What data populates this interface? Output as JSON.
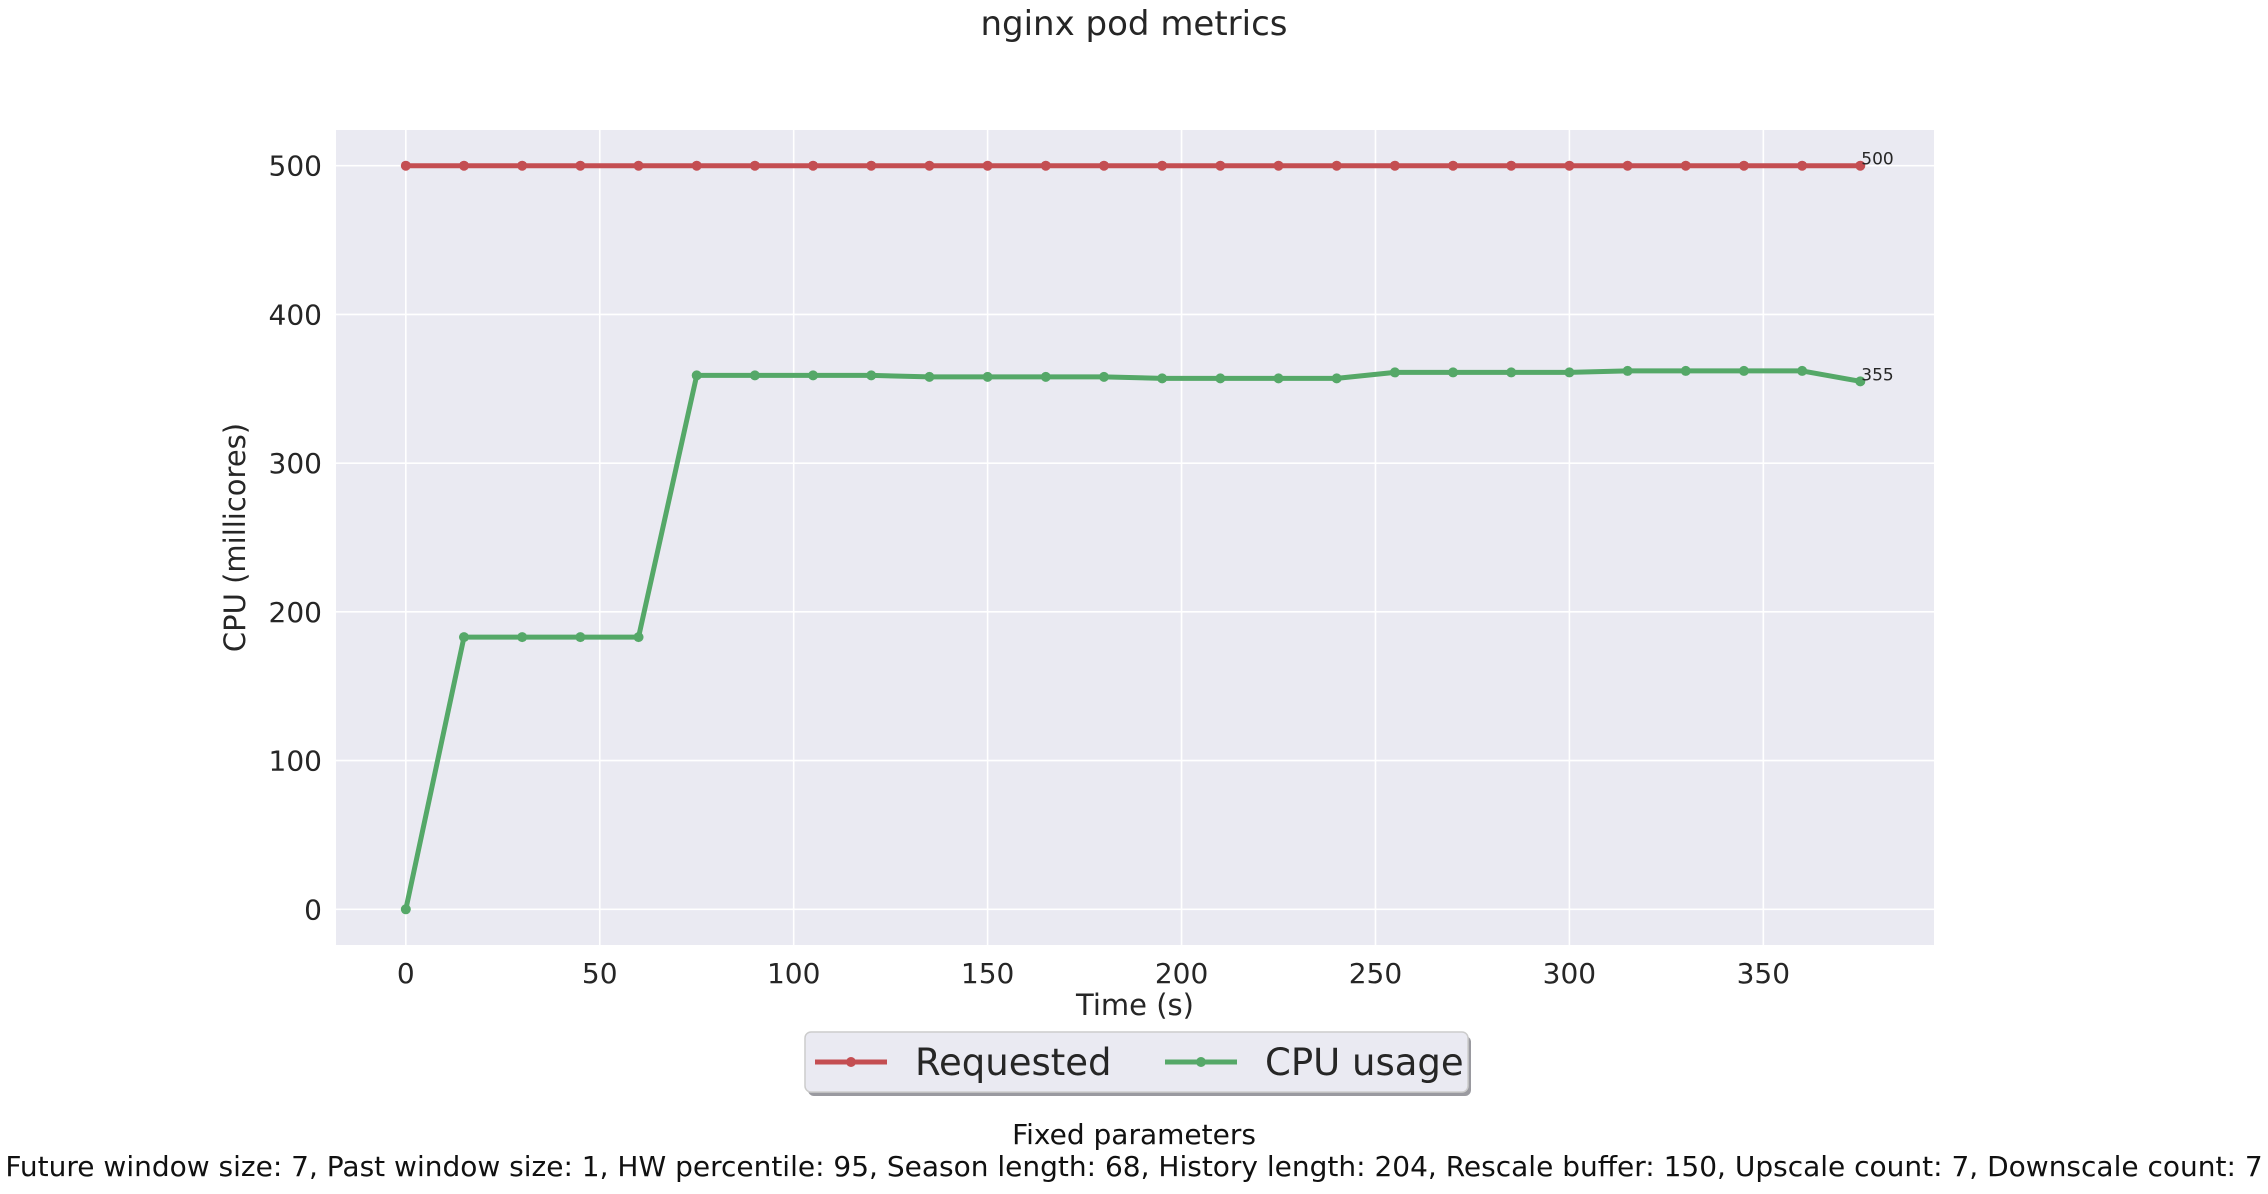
{
  "title": "nginx pod metrics",
  "footer": {
    "heading": "Fixed parameters",
    "params": "Future window size: 7, Past window size: 1, HW percentile: 95, Season length: 68, History length: 204, Rescale buffer: 150, Upscale count: 7, Downscale count: 7"
  },
  "chart_data": {
    "type": "line",
    "title": "nginx pod metrics",
    "xlabel": "Time (s)",
    "ylabel": "CPU (millicores)",
    "xlim": [
      -18,
      394
    ],
    "ylim": [
      -24,
      524
    ],
    "xticks": [
      0,
      50,
      100,
      150,
      200,
      250,
      300,
      350
    ],
    "yticks": [
      0,
      100,
      200,
      300,
      400,
      500
    ],
    "grid": true,
    "legend_position": "bottom-center",
    "x": [
      0,
      15,
      30,
      45,
      60,
      75,
      90,
      105,
      120,
      135,
      150,
      165,
      180,
      195,
      210,
      225,
      240,
      255,
      270,
      285,
      300,
      315,
      330,
      345,
      360,
      375
    ],
    "series": [
      {
        "name": "Requested",
        "color": "#c44e52",
        "values": [
          500,
          500,
          500,
          500,
          500,
          500,
          500,
          500,
          500,
          500,
          500,
          500,
          500,
          500,
          500,
          500,
          500,
          500,
          500,
          500,
          500,
          500,
          500,
          500,
          500,
          500
        ],
        "end_label": "500"
      },
      {
        "name": "CPU usage",
        "color": "#55a868",
        "values": [
          0,
          183,
          183,
          183,
          183,
          359,
          359,
          359,
          359,
          358,
          358,
          358,
          358,
          357,
          357,
          357,
          357,
          361,
          361,
          361,
          361,
          362,
          362,
          362,
          362,
          355
        ],
        "end_label": "355"
      }
    ]
  }
}
